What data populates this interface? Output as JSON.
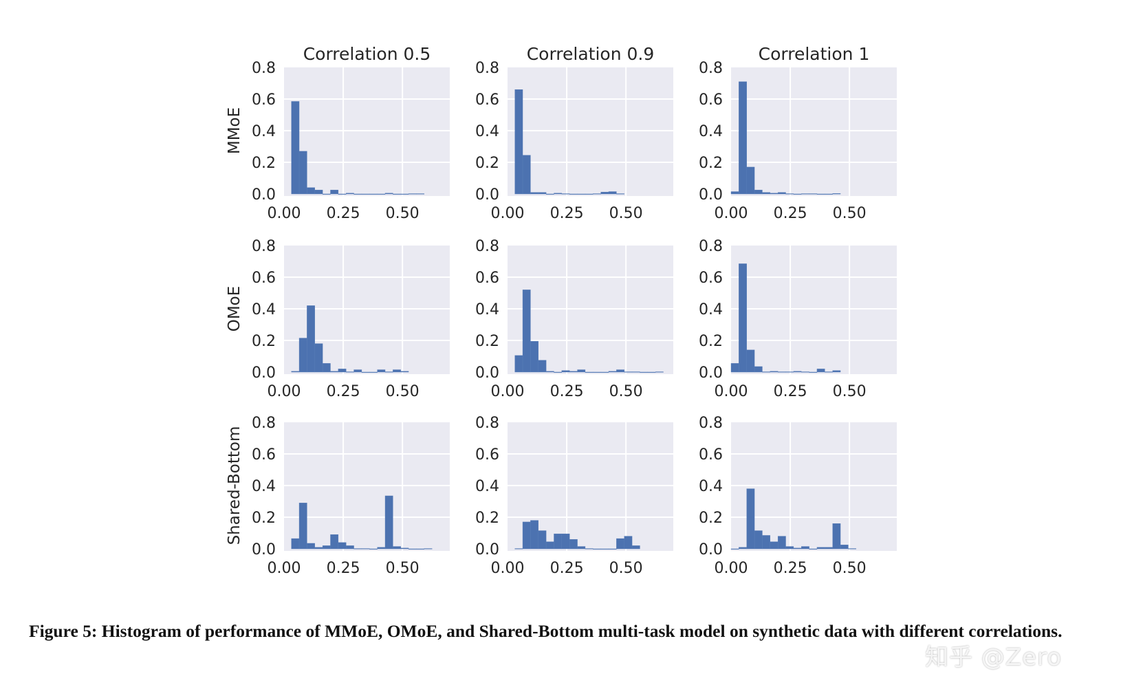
{
  "chart_data": {
    "type": "bar",
    "layout": "3x3 grid of histograms",
    "column_titles": [
      "Correlation 0.5",
      "Correlation 0.9",
      "Correlation 1"
    ],
    "row_labels": [
      "MMoE",
      "OMoE",
      "Shared-Bottom"
    ],
    "xlim": [
      0,
      0.7
    ],
    "ylim": [
      0,
      0.8
    ],
    "x_ticks": [
      "0.00",
      "0.25",
      "0.50"
    ],
    "x_tick_values": [
      0,
      0.25,
      0.5
    ],
    "y_ticks": [
      "0.0",
      "0.2",
      "0.4",
      "0.6",
      "0.8"
    ],
    "y_tick_values": [
      0,
      0.2,
      0.4,
      0.6,
      0.8
    ],
    "grid": true,
    "style": {
      "background": "#eaeaf2",
      "bar_color": "#4c72b0",
      "grid_color": "#ffffff"
    },
    "bin_width": 0.033,
    "panels": [
      {
        "row": "MMoE",
        "column": "Correlation 0.5",
        "bin_start": 0.031,
        "heights": [
          0.585,
          0.27,
          0.04,
          0.025,
          0,
          0.025,
          0,
          0.005,
          0,
          0,
          0,
          0,
          0.005,
          0,
          0,
          0.002,
          0.002
        ]
      },
      {
        "row": "MMoE",
        "column": "Correlation 0.9",
        "bin_start": 0.031,
        "heights": [
          0.66,
          0.245,
          0.01,
          0.01,
          0,
          0.005,
          0.002,
          0,
          0,
          0,
          0.002,
          0.012,
          0.015,
          0.002
        ]
      },
      {
        "row": "MMoE",
        "column": "Correlation 1",
        "bin_start": 0.0,
        "heights": [
          0.015,
          0.71,
          0.17,
          0.025,
          0.01,
          0.005,
          0.01,
          0.002,
          0,
          0.002,
          0.002,
          0,
          0,
          0.003
        ]
      },
      {
        "row": "OMoE",
        "column": "Correlation 0.5",
        "bin_start": 0.031,
        "heights": [
          0.005,
          0.215,
          0.42,
          0.18,
          0.055,
          0.005,
          0.02,
          0.002,
          0.015,
          0,
          0,
          0.015,
          0.002,
          0.015,
          0.005
        ]
      },
      {
        "row": "OMoE",
        "column": "Correlation 0.9",
        "bin_start": 0.031,
        "heights": [
          0.105,
          0.52,
          0.195,
          0.075,
          0.005,
          0,
          0.01,
          0.005,
          0.015,
          0,
          0,
          0,
          0.005,
          0.015,
          0.002,
          0.002,
          0,
          0,
          0.002
        ]
      },
      {
        "row": "OMoE",
        "column": "Correlation 1",
        "bin_start": 0.0,
        "heights": [
          0.055,
          0.685,
          0.14,
          0.035,
          0.002,
          0.005,
          0.002,
          0.002,
          0.005,
          0.002,
          0,
          0.02,
          0.002,
          0.01
        ]
      },
      {
        "row": "Shared-Bottom",
        "column": "Correlation 0.5",
        "bin_start": 0.031,
        "heights": [
          0.065,
          0.29,
          0.035,
          0.01,
          0.02,
          0.09,
          0.04,
          0.02,
          0.002,
          0.002,
          0,
          0.01,
          0.335,
          0.015,
          0.005,
          0,
          0,
          0.002
        ]
      },
      {
        "row": "Shared-Bottom",
        "column": "Correlation 0.9",
        "bin_start": 0.031,
        "heights": [
          0.002,
          0.17,
          0.18,
          0.115,
          0.045,
          0.095,
          0.095,
          0.06,
          0.015,
          0.002,
          0,
          0,
          0,
          0.065,
          0.08,
          0.02
        ]
      },
      {
        "row": "Shared-Bottom",
        "column": "Correlation 1",
        "bin_start": 0.0,
        "heights": [
          0,
          0.01,
          0.38,
          0.115,
          0.085,
          0.045,
          0.08,
          0.015,
          0.005,
          0.015,
          0,
          0.01,
          0.01,
          0.16,
          0.025,
          0.002
        ]
      }
    ]
  },
  "caption": {
    "text": "Figure 5: Histogram of performance of MMoE, OMoE, and Shared-Bottom multi-task model on synthetic data with different correlations."
  },
  "watermark": {
    "text": "知乎 @Zero"
  }
}
